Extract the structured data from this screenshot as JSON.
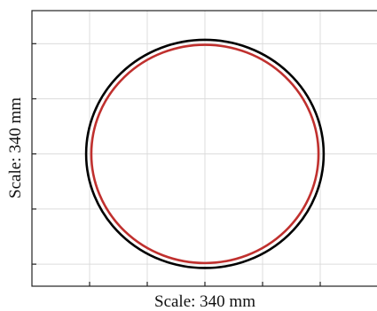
{
  "chart_data": {
    "type": "scatter",
    "title": "",
    "xlabel": "Scale: 340 mm",
    "ylabel": "Scale: 340 mm",
    "grid": true,
    "legend": "none",
    "xlim": [
      0,
      6
    ],
    "ylim": [
      0,
      5
    ],
    "x_ticks": [
      1,
      2,
      3,
      4,
      5
    ],
    "y_ticks": [
      0.4,
      1.4,
      2.4,
      3.4,
      4.4
    ],
    "series": [
      {
        "shape": "circle",
        "color": "#000000",
        "center": [
          3.0,
          2.4
        ],
        "radius_x": 2.06,
        "radius_y": 2.07
      },
      {
        "shape": "circle",
        "color": "#c0302e",
        "center": [
          3.0,
          2.4
        ],
        "radius_x": 1.97,
        "radius_y": 1.98
      }
    ]
  }
}
